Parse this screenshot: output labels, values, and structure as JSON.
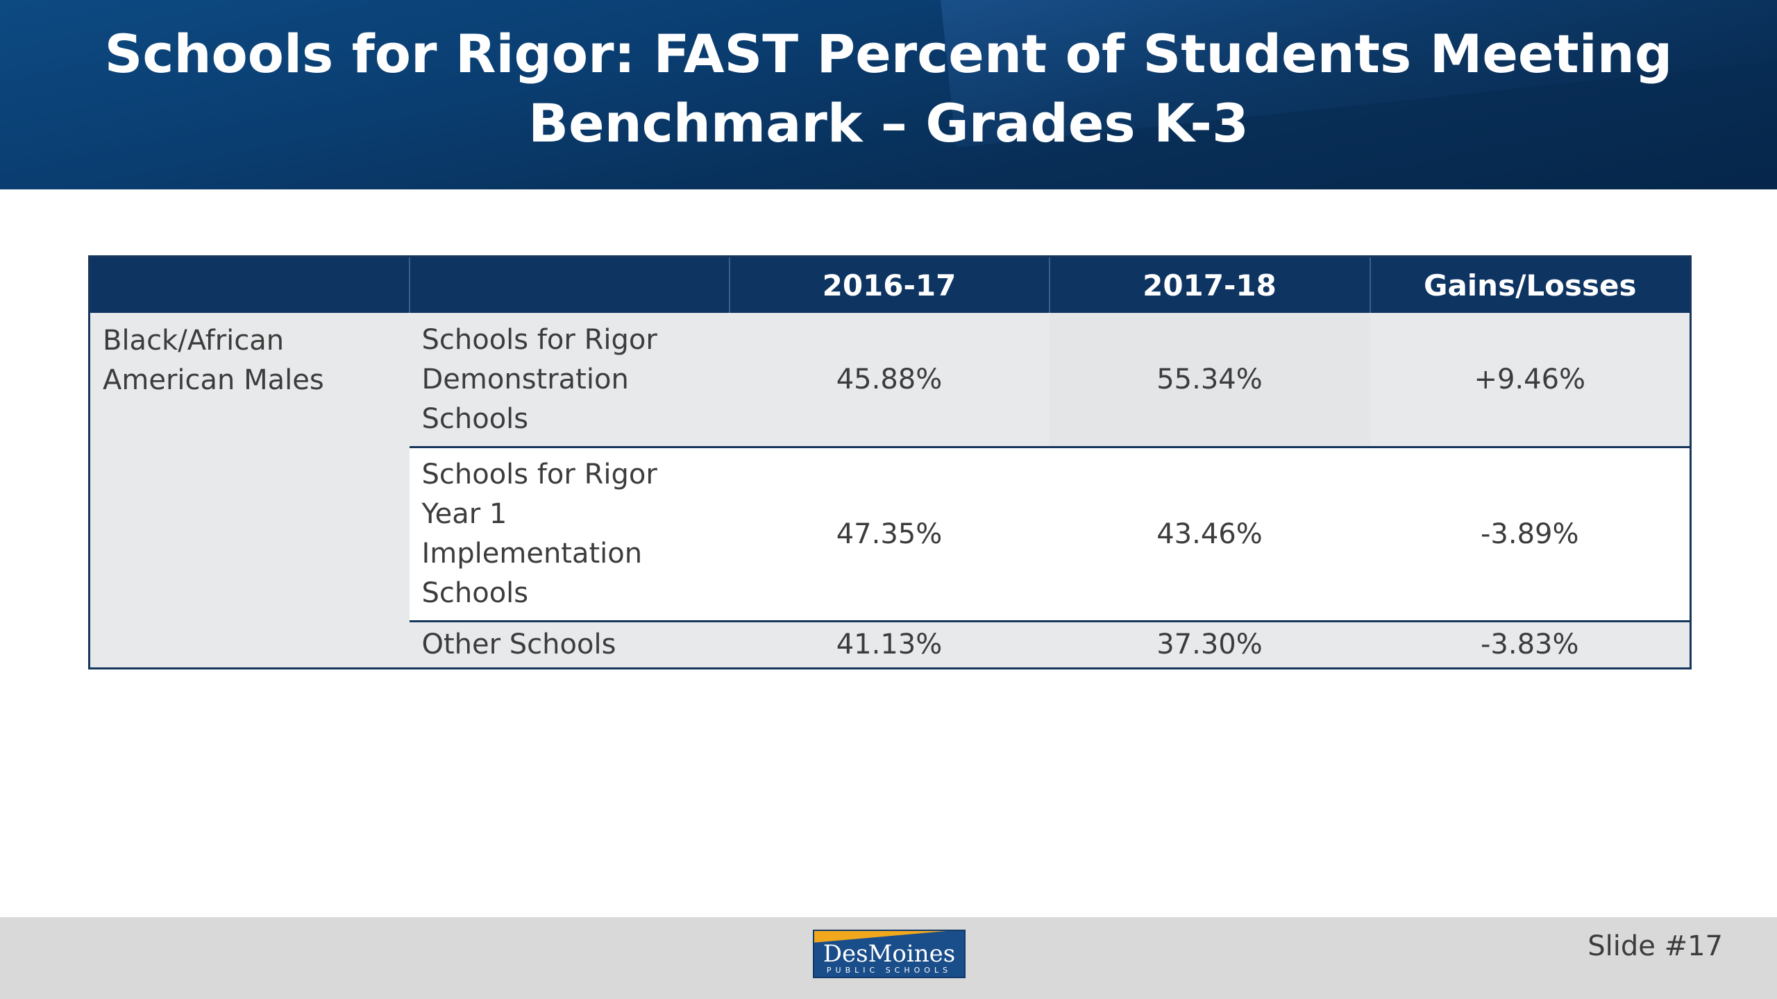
{
  "slide": {
    "title_line1": "Schools for Rigor: FAST Percent of Students Meeting",
    "title_line2": "Benchmark – Grades K-3",
    "slide_number": "Slide #17"
  },
  "table": {
    "headers": [
      "",
      "",
      "2016-17",
      "2017-18",
      "Gains/Losses"
    ],
    "group_label": "Black/African American Males",
    "rows": [
      {
        "label": "Schools for Rigor Demonstration Schools",
        "y2016_17": "45.88%",
        "y2017_18": "55.34%",
        "gain": "+9.46%"
      },
      {
        "label": "Schools for Rigor Year 1 Implementation Schools",
        "y2016_17": "47.35%",
        "y2017_18": "43.46%",
        "gain": "-3.89%"
      },
      {
        "label": "Other Schools",
        "y2016_17": "41.13%",
        "y2017_18": "37.30%",
        "gain": "-3.83%"
      }
    ]
  },
  "logo": {
    "main": "DesMoines",
    "sub": "PUBLIC SCHOOLS"
  },
  "colors": {
    "header_bg": "#0a3d70",
    "table_header_bg": "#0e3462",
    "row_shade": "#e8e9eb",
    "logo_accent": "#f2a81d",
    "footer_bg": "#d9d9d9"
  }
}
